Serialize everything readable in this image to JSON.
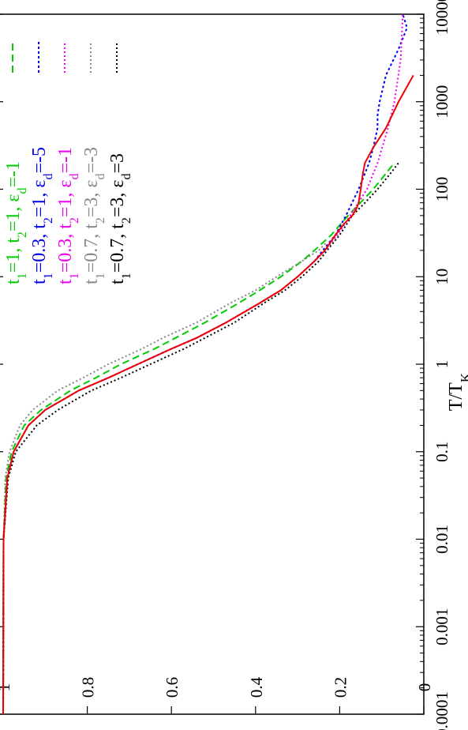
{
  "chart_data": {
    "type": "line",
    "orientation": "rotated-90",
    "xlabel": "T/T",
    "xlabel_sub": "K",
    "ylabel": "",
    "x_scale": "log",
    "xlim": [
      0.0001,
      10000
    ],
    "ylim": [
      0,
      1
    ],
    "x_ticks": [
      {
        "value": 0.0001,
        "label": "0.0001"
      },
      {
        "value": 0.001,
        "label": "0.001"
      },
      {
        "value": 0.01,
        "label": "0.01"
      },
      {
        "value": 0.1,
        "label": "0.1"
      },
      {
        "value": 1,
        "label": "1"
      },
      {
        "value": 10,
        "label": "10"
      },
      {
        "value": 100,
        "label": "100"
      },
      {
        "value": 1000,
        "label": "1000"
      },
      {
        "value": 10000,
        "label": "10000"
      }
    ],
    "y_ticks": [
      {
        "value": 0,
        "label": "0"
      },
      {
        "value": 0.2,
        "label": "0.2"
      },
      {
        "value": 0.4,
        "label": "0.4"
      },
      {
        "value": 0.6,
        "label": "0.6"
      },
      {
        "value": 0.8,
        "label": "0.8"
      },
      {
        "value": 1,
        "label": "1"
      }
    ],
    "grid": false,
    "legend_position": "top-right",
    "series": [
      {
        "name": "t1=1, t2=1, εd=-1",
        "legend": [
          {
            "t": "t"
          },
          {
            "sub": "1"
          },
          {
            "t": "=1, t"
          },
          {
            "sub": "2"
          },
          {
            "t": "=1, ε"
          },
          {
            "sub": "d"
          },
          {
            "t": "=-1"
          }
        ],
        "color": "#00cc00",
        "dash": "9,5",
        "x": [
          0.0001,
          0.01,
          0.05,
          0.1,
          0.2,
          0.3,
          0.5,
          0.7,
          1,
          1.5,
          2,
          3,
          5,
          7,
          10,
          15,
          20,
          30,
          50,
          100,
          200
        ],
        "y": [
          1.0,
          0.999,
          0.993,
          0.98,
          0.95,
          0.91,
          0.84,
          0.78,
          0.72,
          0.64,
          0.59,
          0.52,
          0.44,
          0.39,
          0.34,
          0.29,
          0.26,
          0.22,
          0.18,
          0.12,
          0.07
        ]
      },
      {
        "name": "t1=0.3, t2=1, εd=-5",
        "legend": [
          {
            "t": "t"
          },
          {
            "sub": "1"
          },
          {
            "t": "=0.3, t"
          },
          {
            "sub": "2"
          },
          {
            "t": "=1, ε"
          },
          {
            "sub": "d"
          },
          {
            "t": "=-5"
          }
        ],
        "color": "#0000ee",
        "dash": "3,3",
        "x": [
          0.0001,
          0.01,
          0.05,
          0.1,
          0.2,
          0.3,
          0.5,
          0.7,
          1,
          1.5,
          2,
          3,
          5,
          7,
          10,
          15,
          20,
          30,
          50,
          100,
          200,
          300,
          500,
          700,
          1000,
          2000,
          4000,
          7000,
          10000
        ],
        "y": [
          1.0,
          0.999,
          0.99,
          0.975,
          0.94,
          0.9,
          0.82,
          0.75,
          0.68,
          0.6,
          0.54,
          0.47,
          0.39,
          0.34,
          0.3,
          0.26,
          0.24,
          0.21,
          0.185,
          0.155,
          0.13,
          0.12,
          0.11,
          0.11,
          0.105,
          0.09,
          0.06,
          0.04,
          0.05
        ]
      },
      {
        "name": "t1=0.3, t2=1, εd=-1",
        "legend": [
          {
            "t": "t"
          },
          {
            "sub": "1"
          },
          {
            "t": "=0.3, t"
          },
          {
            "sub": "2"
          },
          {
            "t": "=1, ε"
          },
          {
            "sub": "d"
          },
          {
            "t": "=-1"
          }
        ],
        "color": "#ee00ee",
        "dash": "2,3",
        "x": [
          0.0001,
          0.01,
          0.05,
          0.1,
          0.2,
          0.3,
          0.5,
          0.7,
          1,
          1.5,
          2,
          3,
          5,
          7,
          10,
          15,
          20,
          30,
          50,
          100,
          200,
          500,
          1000,
          3000,
          10000
        ],
        "y": [
          1.0,
          0.999,
          0.99,
          0.975,
          0.94,
          0.9,
          0.82,
          0.75,
          0.68,
          0.6,
          0.54,
          0.47,
          0.39,
          0.34,
          0.3,
          0.26,
          0.235,
          0.205,
          0.175,
          0.135,
          0.11,
          0.085,
          0.07,
          0.055,
          0.05
        ]
      },
      {
        "name": "t1=0.7, t2=3, εd=-3",
        "legend": [
          {
            "t": "t"
          },
          {
            "sub": "1"
          },
          {
            "t": "=0.7, t"
          },
          {
            "sub": "2"
          },
          {
            "t": "=3, ε"
          },
          {
            "sub": "d"
          },
          {
            "t": "=-3"
          }
        ],
        "color": "#888888",
        "dash": "2,3",
        "x": [
          0.0001,
          0.01,
          0.05,
          0.1,
          0.2,
          0.3,
          0.5,
          0.7,
          1,
          1.5,
          2,
          3,
          5,
          7,
          10,
          15,
          20,
          25
        ],
        "y": [
          1.0,
          0.999,
          0.995,
          0.985,
          0.96,
          0.93,
          0.87,
          0.81,
          0.75,
          0.67,
          0.62,
          0.54,
          0.46,
          0.4,
          0.35,
          0.29,
          0.25,
          0.23
        ]
      },
      {
        "name": "t1=0.7, t2=3, εd=3",
        "legend": [
          {
            "t": "t"
          },
          {
            "sub": "1"
          },
          {
            "t": "=0.7, t"
          },
          {
            "sub": "2"
          },
          {
            "t": "=3, ε"
          },
          {
            "sub": "d"
          },
          {
            "t": "=3"
          }
        ],
        "color": "#000000",
        "dash": "2,3",
        "x": [
          0.0001,
          0.01,
          0.05,
          0.1,
          0.2,
          0.3,
          0.5,
          0.7,
          1,
          1.5,
          2,
          3,
          5,
          7,
          10,
          15,
          20,
          30,
          50,
          70,
          100,
          150,
          200
        ],
        "y": [
          1.0,
          0.999,
          0.988,
          0.97,
          0.92,
          0.87,
          0.79,
          0.72,
          0.65,
          0.57,
          0.52,
          0.45,
          0.38,
          0.33,
          0.29,
          0.25,
          0.23,
          0.2,
          0.17,
          0.14,
          0.11,
          0.08,
          0.06
        ]
      },
      {
        "name": "",
        "color": "#ee0000",
        "dash": "",
        "x": [
          0.0001,
          0.01,
          0.05,
          0.1,
          0.2,
          0.3,
          0.5,
          0.7,
          1,
          1.5,
          2,
          3,
          5,
          7,
          10,
          15,
          20,
          30,
          40,
          50,
          60,
          70,
          100,
          150,
          200,
          300,
          500,
          1000,
          2000
        ],
        "y": [
          1.0,
          0.999,
          0.99,
          0.975,
          0.94,
          0.9,
          0.82,
          0.75,
          0.68,
          0.6,
          0.54,
          0.47,
          0.39,
          0.34,
          0.3,
          0.26,
          0.235,
          0.21,
          0.19,
          0.17,
          0.16,
          0.155,
          0.15,
          0.145,
          0.14,
          0.12,
          0.09,
          0.06,
          0.025
        ]
      }
    ]
  }
}
